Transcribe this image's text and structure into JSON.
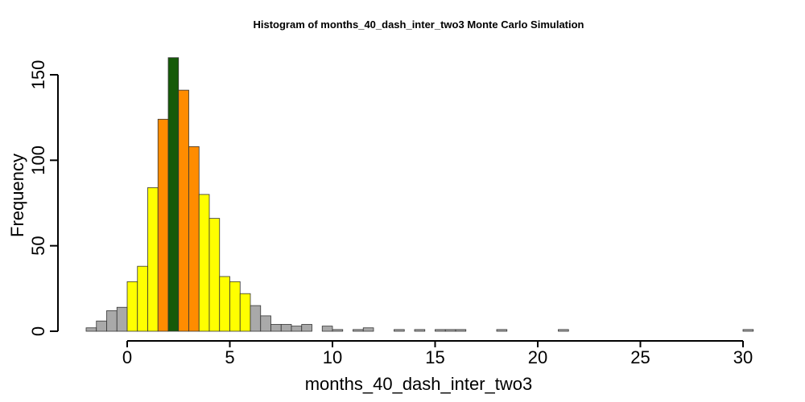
{
  "chart_data": {
    "type": "bar",
    "title": "Histogram of  months_40_dash_inter_two3  Monte Carlo Simulation",
    "xlabel": "months_40_dash_inter_two3",
    "ylabel": "Frequency",
    "xlim": [
      -2,
      30.5
    ],
    "ylim": [
      0,
      160
    ],
    "x_ticks": [
      0,
      5,
      10,
      15,
      20,
      25,
      30
    ],
    "x_tick_labels": [
      "0",
      "5",
      "10",
      "15",
      "20",
      "25",
      "30"
    ],
    "y_ticks": [
      0,
      50,
      100,
      150
    ],
    "y_tick_labels": [
      "0",
      "50",
      "100",
      "150"
    ],
    "bin_width": 0.5,
    "bin_start": -2,
    "values": [
      2,
      6,
      12,
      14,
      29,
      38,
      84,
      124,
      160,
      141,
      108,
      80,
      66,
      32,
      29,
      22,
      15,
      9,
      4,
      4,
      3,
      4,
      0,
      3,
      1,
      0,
      1,
      2,
      0,
      0,
      1,
      0,
      1,
      0,
      1,
      1,
      1,
      0,
      0,
      0,
      1,
      0,
      0,
      0,
      0,
      0,
      1,
      0,
      0,
      0,
      0,
      0,
      0,
      0,
      0,
      0,
      0,
      0,
      0,
      0,
      0,
      0,
      0,
      0,
      1
    ],
    "color_groups": [
      {
        "from": -2,
        "to": 0,
        "color": "#a9a9a9"
      },
      {
        "from": 0,
        "to": 1.5,
        "color": "#ffff00"
      },
      {
        "from": 1.5,
        "to": 2,
        "color": "#ff8c00"
      },
      {
        "from": 2,
        "to": 2.5,
        "color": "#155a09"
      },
      {
        "from": 2.5,
        "to": 3.5,
        "color": "#ff8c00"
      },
      {
        "from": 3.5,
        "to": 6,
        "color": "#ffff00"
      },
      {
        "from": 6,
        "to": 31,
        "color": "#a9a9a9"
      }
    ]
  }
}
